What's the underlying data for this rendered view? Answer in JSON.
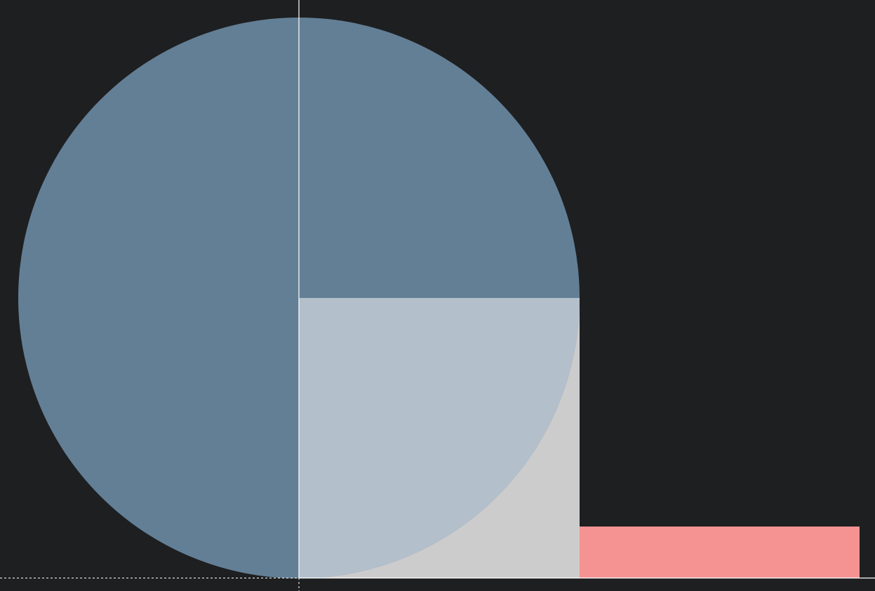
{
  "colors": {
    "background": "#1e1f21",
    "circle_main": "#637f96",
    "circle_quadrant_light": "#b3bfcb",
    "square": "#cccccc",
    "bar": "#f59292",
    "axis": "#ffffff"
  },
  "shapes": [
    "circle",
    "light-quadrant",
    "square",
    "bar",
    "vertical-axis",
    "horizontal-axis"
  ]
}
